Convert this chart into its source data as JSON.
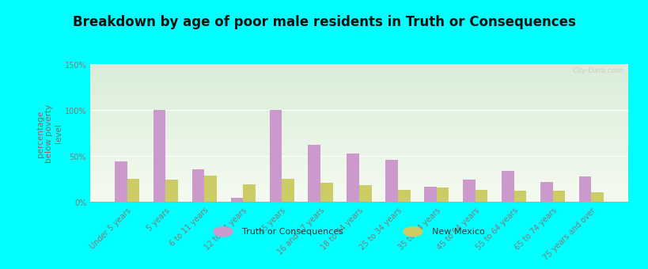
{
  "title": "Breakdown by age of poor male residents in Truth or Consequences",
  "categories": [
    "Under 5 years",
    "5 years",
    "6 to 11 years",
    "12 to 14 years",
    "15 years",
    "16 and 17 years",
    "18 to 24 years",
    "25 to 34 years",
    "35 to 44 years",
    "45 to 54 years",
    "55 to 64 years",
    "65 to 74 years",
    "75 years and over"
  ],
  "toc_values": [
    44,
    100,
    36,
    5,
    100,
    62,
    53,
    46,
    17,
    24,
    34,
    22,
    28
  ],
  "nm_values": [
    25,
    24,
    29,
    19,
    25,
    21,
    18,
    13,
    16,
    13,
    12,
    12,
    11
  ],
  "toc_color": "#cc99cc",
  "nm_color": "#cccc66",
  "ylabel": "percentage\nbelow poverty\nlevel",
  "ylim": [
    0,
    150
  ],
  "yticks": [
    0,
    50,
    100,
    150
  ],
  "ytick_labels": [
    "0%",
    "50%",
    "100%",
    "150%"
  ],
  "background_outer": "#00ffff",
  "background_plot_top": "#d8edd8",
  "background_plot_bottom": "#f5faf0",
  "title_fontsize": 12,
  "axis_label_fontsize": 7.5,
  "tick_fontsize": 7,
  "legend_labels": [
    "Truth or Consequences",
    "New Mexico"
  ],
  "watermark": "City-Data.com",
  "label_color": "#886666",
  "tick_color": "#887777"
}
